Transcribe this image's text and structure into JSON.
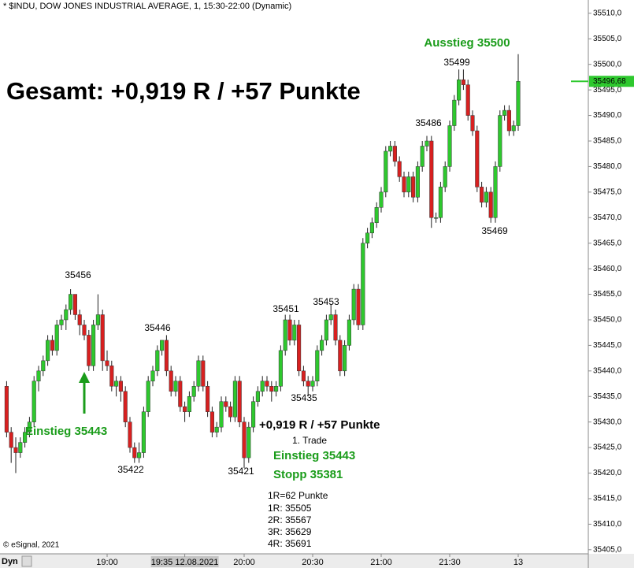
{
  "chart_data": {
    "type": "candlestick",
    "title": "* $INDU, DOW JONES INDUSTRIAL AVERAGE, 1, 15:30-22:00 (Dynamic)",
    "source": "© eSignal, 2021",
    "corner_label": "Dyn",
    "up_color": "#2ec82e",
    "down_color": "#d82020",
    "ylim": [
      35404.2,
      35512.6
    ],
    "yticks": [
      {
        "value": 35510,
        "label": "35510,0"
      },
      {
        "value": 35505,
        "label": "35505,0"
      },
      {
        "value": 35500,
        "label": "35500,0"
      },
      {
        "value": 35495,
        "label": "35495,0"
      },
      {
        "value": 35490,
        "label": "35490,0"
      },
      {
        "value": 35485,
        "label": "35485,0"
      },
      {
        "value": 35480,
        "label": "35480,0"
      },
      {
        "value": 35475,
        "label": "35475,0"
      },
      {
        "value": 35470,
        "label": "35470,0"
      },
      {
        "value": 35465,
        "label": "35465,0"
      },
      {
        "value": 35460,
        "label": "35460,0"
      },
      {
        "value": 35455,
        "label": "35455,0"
      },
      {
        "value": 35450,
        "label": "35450,0"
      },
      {
        "value": 35445,
        "label": "35445,0"
      },
      {
        "value": 35440,
        "label": "35440,0"
      },
      {
        "value": 35435,
        "label": "35435,0"
      },
      {
        "value": 35430,
        "label": "35430,0"
      },
      {
        "value": 35425,
        "label": "35425,0"
      },
      {
        "value": 35420,
        "label": "35420,0"
      },
      {
        "value": 35415,
        "label": "35415,0"
      },
      {
        "value": 35410,
        "label": "35410,0"
      },
      {
        "value": 35405,
        "label": "35405,0"
      }
    ],
    "last_price": {
      "value": 35496.68,
      "label": "35496,68"
    },
    "crosshair_category": 39,
    "categories": [
      null,
      null,
      null,
      null,
      null,
      null,
      null,
      null,
      null,
      null,
      null,
      null,
      null,
      null,
      null,
      null,
      null,
      null,
      null,
      null,
      null,
      null,
      "19:00",
      null,
      null,
      null,
      null,
      null,
      null,
      null,
      null,
      null,
      null,
      null,
      null,
      null,
      null,
      null,
      null,
      "19:35 12.08.2021",
      null,
      null,
      null,
      null,
      null,
      null,
      null,
      null,
      null,
      null,
      null,
      null,
      "20:00",
      null,
      null,
      null,
      null,
      null,
      null,
      null,
      null,
      null,
      null,
      null,
      null,
      null,
      null,
      "20:30",
      null,
      null,
      null,
      null,
      null,
      null,
      null,
      null,
      null,
      null,
      null,
      null,
      null,
      null,
      "21:00",
      null,
      null,
      null,
      null,
      null,
      null,
      null,
      null,
      null,
      null,
      null,
      null,
      null,
      null,
      "21:30",
      null,
      null,
      null,
      null,
      null,
      null,
      null,
      null,
      null,
      null,
      null,
      null,
      null,
      null,
      "13"
    ],
    "candles": [
      [
        35437,
        35438,
        35427,
        35428
      ],
      [
        35428,
        35429,
        35422,
        35425
      ],
      [
        35425,
        35427,
        35420,
        35424
      ],
      [
        35424,
        35427,
        35423,
        35426
      ],
      [
        35426,
        35429,
        35425,
        35428
      ],
      [
        35428,
        35431,
        35427,
        35430
      ],
      [
        35430,
        35439,
        35429,
        35438
      ],
      [
        35438,
        35441,
        35436,
        35440
      ],
      [
        35440,
        35443,
        35439,
        35442
      ],
      [
        35442,
        35447,
        35441,
        35446
      ],
      [
        35446,
        35447,
        35443,
        35444
      ],
      [
        35444,
        35450,
        35443,
        35449
      ],
      [
        35449,
        35451,
        35448,
        35450
      ],
      [
        35450,
        35453,
        35448,
        35452
      ],
      [
        35452,
        35456,
        35451,
        35455
      ],
      [
        35455,
        35455,
        35450,
        35451
      ],
      [
        35451,
        35452,
        35447,
        35449
      ],
      [
        35449,
        35450,
        35446,
        35447
      ],
      [
        35447,
        35448,
        35440,
        35441
      ],
      [
        35441,
        35450,
        35440,
        35449
      ],
      [
        35449,
        35455,
        35448,
        35451
      ],
      [
        35451,
        35452,
        35440,
        35442
      ],
      [
        35442,
        35444,
        35440,
        35441
      ],
      [
        35441,
        35442,
        35436,
        35437
      ],
      [
        35437,
        35439,
        35435,
        35438
      ],
      [
        35438,
        35439,
        35434,
        35436
      ],
      [
        35436,
        35437,
        35429,
        35430
      ],
      [
        35430,
        35431,
        35424,
        35425
      ],
      [
        35425,
        35426,
        35422,
        35423
      ],
      [
        35423,
        35426,
        35422,
        35424
      ],
      [
        35424,
        35433,
        35423,
        35432
      ],
      [
        35432,
        35439,
        35431,
        35438
      ],
      [
        35438,
        35441,
        35437,
        35440
      ],
      [
        35440,
        35445,
        35439,
        35444
      ],
      [
        35444,
        35446,
        35443,
        35446
      ],
      [
        35446,
        35447,
        35439,
        35440
      ],
      [
        35440,
        35441,
        35435,
        35436
      ],
      [
        35436,
        35439,
        35435,
        35438
      ],
      [
        35438,
        35439,
        35432,
        35433
      ],
      [
        35433,
        35434,
        35430,
        35432
      ],
      [
        35432,
        35436,
        35431,
        35435
      ],
      [
        35435,
        35438,
        35434,
        35437
      ],
      [
        35437,
        35443,
        35436,
        35442
      ],
      [
        35442,
        35443,
        35436,
        35437
      ],
      [
        35437,
        35438,
        35431,
        35432
      ],
      [
        35432,
        35433,
        35427,
        35428
      ],
      [
        35428,
        35430,
        35427,
        35429
      ],
      [
        35429,
        35435,
        35428,
        35434
      ],
      [
        35434,
        35435,
        35432,
        35433
      ],
      [
        35433,
        35434,
        35430,
        35431
      ],
      [
        35431,
        35439,
        35430,
        35438
      ],
      [
        35438,
        35439,
        35429,
        35430
      ],
      [
        35430,
        35431,
        35421,
        35423
      ],
      [
        35423,
        35430,
        35422,
        35429
      ],
      [
        35429,
        35435,
        35428,
        35434
      ],
      [
        35434,
        35437,
        35433,
        35436
      ],
      [
        35436,
        35439,
        35435,
        35438
      ],
      [
        35438,
        35439,
        35436,
        35437
      ],
      [
        35437,
        35438,
        35434,
        35436
      ],
      [
        35436,
        35438,
        35435,
        35437
      ],
      [
        35437,
        35445,
        35436,
        35444
      ],
      [
        35444,
        35451,
        35443,
        35450
      ],
      [
        35450,
        35451,
        35445,
        35446
      ],
      [
        35446,
        35450,
        35445,
        35449
      ],
      [
        35449,
        35450,
        35439,
        35440
      ],
      [
        35440,
        35441,
        35437,
        35438
      ],
      [
        35438,
        35439,
        35435,
        35437
      ],
      [
        35437,
        35439,
        35436,
        35438
      ],
      [
        35438,
        35445,
        35437,
        35444
      ],
      [
        35444,
        35447,
        35443,
        35446
      ],
      [
        35446,
        35451,
        35445,
        35450
      ],
      [
        35450,
        35453,
        35449,
        35451
      ],
      [
        35451,
        35452,
        35445,
        35446
      ],
      [
        35446,
        35447,
        35439,
        35440
      ],
      [
        35440,
        35446,
        35439,
        35445
      ],
      [
        35445,
        35451,
        35444,
        35450
      ],
      [
        35450,
        35457,
        35449,
        35456
      ],
      [
        35456,
        35457,
        35448,
        35449
      ],
      [
        35449,
        35466,
        35448,
        35465
      ],
      [
        35465,
        35468,
        35464,
        35467
      ],
      [
        35467,
        35470,
        35466,
        35469
      ],
      [
        35469,
        35473,
        35468,
        35472
      ],
      [
        35472,
        35476,
        35471,
        35475
      ],
      [
        35475,
        35484,
        35474,
        35483
      ],
      [
        35483,
        35485,
        35482,
        35484
      ],
      [
        35484,
        35485,
        35480,
        35481
      ],
      [
        35481,
        35482,
        35477,
        35478
      ],
      [
        35478,
        35479,
        35474,
        35475
      ],
      [
        35475,
        35479,
        35474,
        35478
      ],
      [
        35478,
        35479,
        35473,
        35474
      ],
      [
        35474,
        35481,
        35473,
        35480
      ],
      [
        35480,
        35485,
        35479,
        35484
      ],
      [
        35484,
        35486,
        35483,
        35485
      ],
      [
        35485,
        35486,
        35468,
        35470
      ],
      [
        35470,
        35471,
        35469,
        35470
      ],
      [
        35470,
        35477,
        35469,
        35476
      ],
      [
        35476,
        35481,
        35475,
        35480
      ],
      [
        35480,
        35489,
        35479,
        35488
      ],
      [
        35488,
        35494,
        35487,
        35493
      ],
      [
        35493,
        35499,
        35492,
        35497
      ],
      [
        35497,
        35499,
        35495,
        35496
      ],
      [
        35496,
        35497,
        35489,
        35490
      ],
      [
        35490,
        35491,
        35486,
        35487
      ],
      [
        35487,
        35488,
        35475,
        35476
      ],
      [
        35476,
        35477,
        35472,
        35473
      ],
      [
        35473,
        35476,
        35472,
        35475
      ],
      [
        35475,
        35476,
        35469,
        35470
      ],
      [
        35470,
        35481,
        35469,
        35480
      ],
      [
        35480,
        35491,
        35479,
        35490
      ],
      [
        35490,
        35492,
        35489,
        35491
      ],
      [
        35491,
        35492,
        35486,
        35487
      ],
      [
        35487,
        35489,
        35486,
        35488
      ],
      [
        35488,
        35502,
        35487,
        35496.68
      ]
    ],
    "annotations": [
      "Gesamt: +0,919 R / +57 Punkte",
      "Ausstieg 35500",
      "35499",
      "35486",
      "35469",
      "35456",
      "35446",
      "35451",
      "35453",
      "35435",
      "35422",
      "35421",
      "Einstieg 35443",
      "+0,919 R / +57 Punkte",
      "1. Trade",
      "Einstieg 35443",
      "Stopp 35381",
      "1R=62 Punkte",
      "1R: 35505",
      "2R: 35567",
      "3R: 35629",
      "4R: 35691"
    ]
  }
}
